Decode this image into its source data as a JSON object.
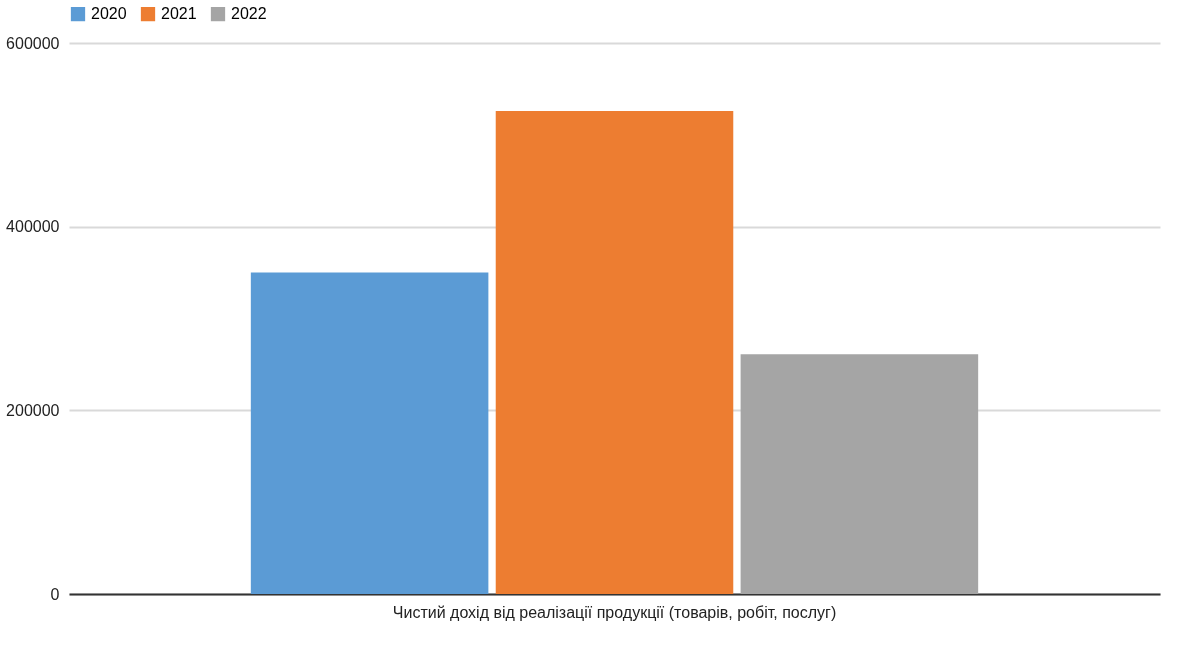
{
  "chart_data": {
    "type": "bar",
    "categories": [
      "Чистий дохід від реалізації продукції (товарів, робіт, послуг)"
    ],
    "series": [
      {
        "name": "2020",
        "color": "#5b9bd5",
        "values": [
          350000
        ]
      },
      {
        "name": "2021",
        "color": "#ed7d31",
        "values": [
          526000
        ]
      },
      {
        "name": "2022",
        "color": "#a5a5a5",
        "values": [
          261000
        ]
      }
    ],
    "ylim": [
      0,
      600000
    ],
    "yticks": [
      0,
      200000,
      400000,
      600000
    ],
    "grid": "y",
    "legend": "top"
  }
}
